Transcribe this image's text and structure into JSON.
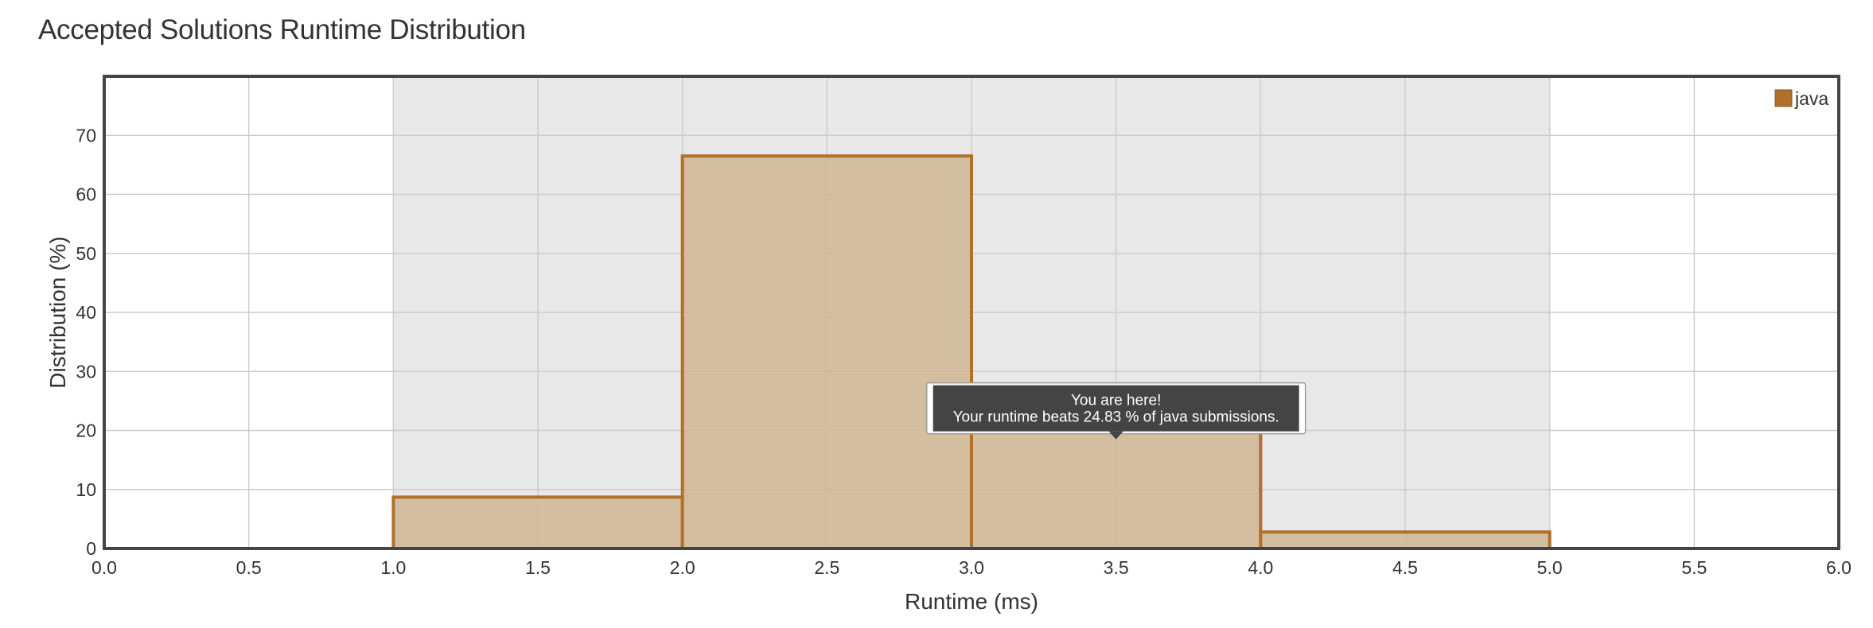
{
  "page": {
    "title": "Accepted Solutions Runtime Distribution"
  },
  "chart_data": {
    "type": "bar",
    "bins": [
      {
        "x0": 1.0,
        "x1": 2.0,
        "value": 8.7
      },
      {
        "x0": 2.0,
        "x1": 3.0,
        "value": 66.5
      },
      {
        "x0": 3.0,
        "x1": 4.0,
        "value": 22.0
      },
      {
        "x0": 4.0,
        "x1": 5.0,
        "value": 2.8
      }
    ],
    "series": [
      {
        "name": "java",
        "color": "#b0702a",
        "fill": "#d0b795"
      }
    ],
    "xlabel": "Runtime (ms)",
    "ylabel": "Distribution (%)",
    "xlim": [
      0.0,
      6.0
    ],
    "ylim": [
      0,
      80
    ],
    "x_ticks": [
      "0.0",
      "0.5",
      "1.0",
      "1.5",
      "2.0",
      "2.5",
      "3.0",
      "3.5",
      "4.0",
      "4.5",
      "5.0",
      "5.5",
      "6.0"
    ],
    "y_ticks": [
      "0",
      "10",
      "20",
      "30",
      "40",
      "50",
      "60",
      "70"
    ],
    "highlight_range": [
      1.0,
      5.0
    ],
    "grid": true,
    "legend": {
      "position": "top-right",
      "entries": [
        "java"
      ]
    },
    "annotation": {
      "x": 3.5,
      "y": 18.5,
      "line1": "You are here!",
      "line2": "Your runtime beats 24.83 % of java submissions."
    },
    "colors": {
      "highlight_band": "#e8e8e8",
      "grid": "#cccccc",
      "frame": "#444444",
      "tooltip_bg": "#444444"
    }
  }
}
